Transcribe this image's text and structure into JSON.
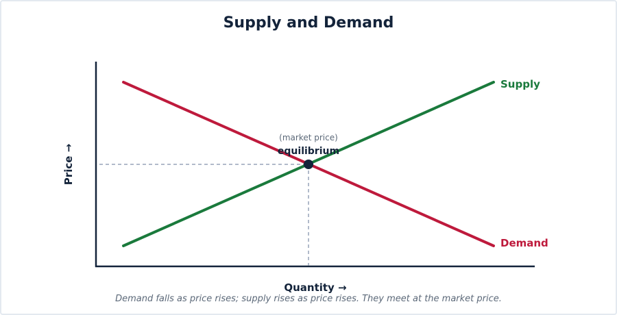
{
  "title": "Supply and Demand",
  "axes": {
    "x_label": "Quantity →",
    "y_label": "Price →"
  },
  "curves": {
    "supply": {
      "label": "Supply",
      "color": "#1a7a3c"
    },
    "demand": {
      "label": "Demand",
      "color": "#be1a3c"
    }
  },
  "equilibrium": {
    "label": "equilibrium",
    "sublabel": "(market price)",
    "marker_color": "#13233a",
    "guide_color": "#97a3b8"
  },
  "caption": "Demand falls as price rises; supply rises as price rises. They meet at the market price.",
  "colors": {
    "axis": "#13233a",
    "text": "#13233a",
    "muted": "#5b6878"
  }
}
